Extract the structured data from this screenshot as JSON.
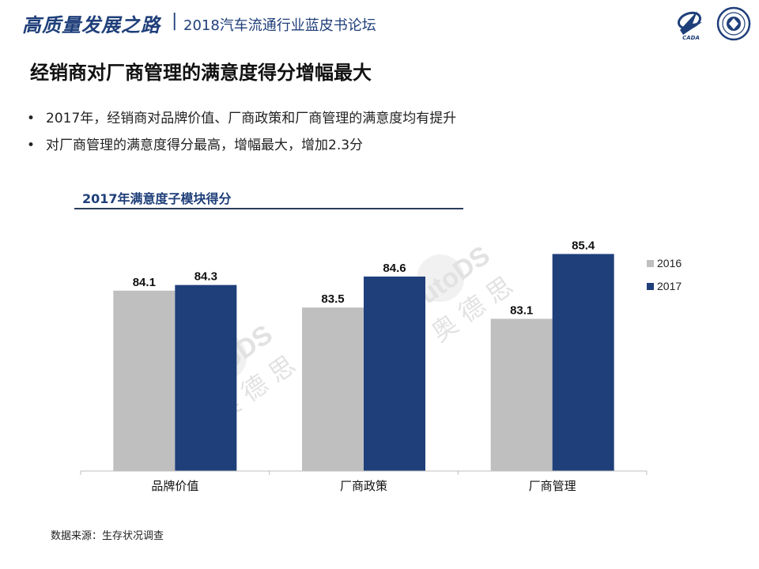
{
  "header": {
    "title": "高质量发展之路",
    "separator": "|",
    "subtitle": "2018汽车流通行业蓝皮书论坛",
    "logo_left_text": "CADA",
    "logo_icons": [
      "cada-logo-icon",
      "association-seal-icon"
    ]
  },
  "slide": {
    "title": "经销商对厂商管理的满意度得分增幅最大",
    "bullets": [
      "2017年，经销商对品牌价值、厂商政策和厂商管理的满意度均有提升",
      "对厂商管理的满意度得分最高，增幅最大，增加2.3分"
    ],
    "source": "数据来源：生存状况调查",
    "watermark": {
      "brand": "AutoDS",
      "chinese": "奥 德 思"
    }
  },
  "colors": {
    "brand_blue": "#1f3f7a",
    "series_2016": "#bfbfbf",
    "series_2017": "#1f3f7a"
  },
  "chart_data": {
    "type": "bar",
    "title": "2017年满意度子模块得分",
    "categories": [
      "品牌价值",
      "厂商政策",
      "厂商管理"
    ],
    "series": [
      {
        "name": "2016",
        "values": [
          84.1,
          83.5,
          83.1
        ],
        "labels": [
          "84.1",
          "83.5",
          "83.1"
        ]
      },
      {
        "name": "2017",
        "values": [
          84.3,
          84.6,
          85.4
        ],
        "labels": [
          "84.3",
          "84.6",
          "85.4"
        ]
      }
    ],
    "ylim": [
      77.7,
      86.0
    ],
    "grid": false,
    "legend": "right"
  }
}
